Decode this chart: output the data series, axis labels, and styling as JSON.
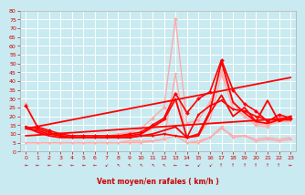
{
  "background_color": "#c8eaf0",
  "grid_color": "#ffffff",
  "xlabel": "Vent moyen/en rafales ( km/h )",
  "xlim": [
    -0.5,
    23.5
  ],
  "ylim": [
    0,
    80
  ],
  "yticks": [
    0,
    5,
    10,
    15,
    20,
    25,
    30,
    35,
    40,
    45,
    50,
    55,
    60,
    65,
    70,
    75,
    80
  ],
  "xticks": [
    0,
    1,
    2,
    3,
    4,
    5,
    6,
    7,
    8,
    9,
    10,
    11,
    12,
    13,
    14,
    15,
    16,
    17,
    18,
    19,
    20,
    21,
    22,
    23
  ],
  "series": [
    {
      "label": "gust_light_pink_diamond",
      "x": [
        0,
        1,
        2,
        3,
        4,
        5,
        6,
        7,
        8,
        9,
        10,
        11,
        12,
        13,
        14,
        15,
        16,
        17,
        18,
        19,
        20,
        21,
        22,
        23
      ],
      "y": [
        27,
        14,
        11,
        9,
        9,
        9,
        9,
        9,
        10,
        11,
        13,
        19,
        25,
        75,
        16,
        18,
        28,
        46,
        28,
        20,
        15,
        14,
        20,
        19
      ],
      "color": "#ffaaaa",
      "lw": 1.0,
      "marker": "D",
      "markersize": 2.0,
      "alpha": 1.0
    },
    {
      "label": "avg_light_pink_triangle",
      "x": [
        0,
        1,
        2,
        3,
        4,
        5,
        6,
        7,
        8,
        9,
        10,
        11,
        12,
        13,
        14,
        15,
        16,
        17,
        18,
        19,
        20,
        21,
        22,
        23
      ],
      "y": [
        5,
        5,
        5,
        5,
        5,
        5,
        5,
        5,
        5,
        5,
        5,
        6,
        7,
        44,
        5,
        5,
        8,
        14,
        8,
        9,
        6,
        7,
        6,
        7
      ],
      "color": "#ffaaaa",
      "lw": 1.0,
      "marker": "v",
      "markersize": 2.0,
      "alpha": 1.0
    },
    {
      "label": "line_light_pink_upper",
      "x": [
        0,
        1,
        2,
        3,
        4,
        5,
        6,
        7,
        8,
        9,
        10,
        11,
        12,
        13,
        14,
        15,
        16,
        17,
        18,
        19,
        20,
        21,
        22,
        23
      ],
      "y": [
        13,
        11,
        9,
        8,
        8,
        8,
        8,
        8,
        8,
        9,
        10,
        13,
        18,
        29,
        8,
        9,
        18,
        44,
        25,
        20,
        16,
        15,
        17,
        17
      ],
      "color": "#ffaaaa",
      "lw": 1.0,
      "marker": "None",
      "markersize": 0,
      "alpha": 1.0
    },
    {
      "label": "line_light_pink_lower",
      "x": [
        0,
        1,
        2,
        3,
        4,
        5,
        6,
        7,
        8,
        9,
        10,
        11,
        12,
        13,
        14,
        15,
        16,
        17,
        18,
        19,
        20,
        21,
        22,
        23
      ],
      "y": [
        5,
        5,
        5,
        5,
        5,
        5,
        5,
        5,
        5,
        6,
        6,
        6,
        7,
        9,
        5,
        6,
        8,
        13,
        9,
        9,
        7,
        8,
        7,
        8
      ],
      "color": "#ffaaaa",
      "lw": 1.0,
      "marker": "None",
      "markersize": 0,
      "alpha": 1.0
    },
    {
      "label": "trend_upper",
      "x": [
        0,
        23
      ],
      "y": [
        13,
        42
      ],
      "color": "#ff0000",
      "lw": 1.3,
      "marker": "None",
      "markersize": 0,
      "alpha": 1.0
    },
    {
      "label": "trend_lower",
      "x": [
        0,
        23
      ],
      "y": [
        9,
        19
      ],
      "color": "#ff0000",
      "lw": 1.3,
      "marker": "None",
      "markersize": 0,
      "alpha": 1.0
    },
    {
      "label": "gust_red_diamond",
      "x": [
        0,
        1,
        2,
        3,
        4,
        5,
        6,
        7,
        8,
        9,
        10,
        11,
        12,
        13,
        14,
        15,
        16,
        17,
        18,
        19,
        20,
        21,
        22,
        23
      ],
      "y": [
        26,
        14,
        12,
        10,
        9,
        9,
        9,
        9,
        9,
        10,
        11,
        15,
        19,
        33,
        22,
        30,
        34,
        52,
        35,
        27,
        23,
        17,
        21,
        19
      ],
      "color": "#ff0000",
      "lw": 1.2,
      "marker": "D",
      "markersize": 2.0,
      "alpha": 1.0
    },
    {
      "label": "avg_red_triangle",
      "x": [
        0,
        1,
        2,
        3,
        4,
        5,
        6,
        7,
        8,
        9,
        10,
        11,
        12,
        13,
        14,
        15,
        16,
        17,
        18,
        19,
        20,
        21,
        22,
        23
      ],
      "y": [
        14,
        13,
        11,
        9,
        8,
        8,
        8,
        8,
        8,
        8,
        9,
        9,
        10,
        9,
        8,
        21,
        26,
        29,
        24,
        23,
        20,
        18,
        18,
        20
      ],
      "color": "#ff0000",
      "lw": 1.2,
      "marker": "v",
      "markersize": 2.0,
      "alpha": 1.0
    },
    {
      "label": "line_red_upper",
      "x": [
        0,
        1,
        2,
        3,
        4,
        5,
        6,
        7,
        8,
        9,
        10,
        11,
        12,
        13,
        14,
        15,
        16,
        17,
        18,
        19,
        20,
        21,
        22,
        23
      ],
      "y": [
        14,
        11,
        9,
        8,
        8,
        8,
        8,
        8,
        8,
        8,
        9,
        10,
        12,
        14,
        8,
        9,
        22,
        32,
        20,
        25,
        17,
        29,
        17,
        20
      ],
      "color": "#ff0000",
      "lw": 1.3,
      "marker": "None",
      "markersize": 0,
      "alpha": 1.0
    },
    {
      "label": "line_red_lower",
      "x": [
        0,
        1,
        2,
        3,
        4,
        5,
        6,
        7,
        8,
        9,
        10,
        11,
        12,
        13,
        14,
        15,
        16,
        17,
        18,
        19,
        20,
        21,
        22,
        23
      ],
      "y": [
        13,
        12,
        10,
        9,
        8,
        8,
        8,
        8,
        9,
        9,
        10,
        14,
        18,
        30,
        8,
        10,
        23,
        51,
        28,
        22,
        17,
        16,
        18,
        18
      ],
      "color": "#ff0000",
      "lw": 1.3,
      "marker": "None",
      "markersize": 0,
      "alpha": 1.0
    }
  ],
  "wind_arrows": [
    "w",
    "w",
    "w",
    "w",
    "w",
    "w",
    "w",
    "sw",
    "nw",
    "nw",
    "nw",
    "nw",
    "nw",
    "w",
    "w",
    "sw",
    "sw",
    "n",
    "n",
    "n",
    "n",
    "n",
    "n",
    "w"
  ]
}
